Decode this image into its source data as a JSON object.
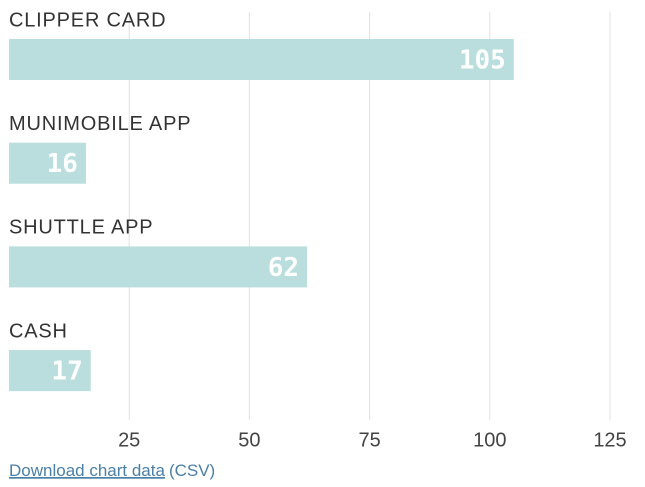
{
  "chart_data": {
    "type": "barh",
    "categories": [
      "CLIPPER CARD",
      "MUNIMOBILE APP",
      "SHUTTLE APP",
      "CASH"
    ],
    "values": [
      105,
      16,
      62,
      17
    ],
    "color": "#b9dedd",
    "xlim": [
      0,
      125
    ],
    "xticks": [
      25,
      50,
      75,
      100,
      125
    ],
    "grid": true
  },
  "footer": {
    "link": "Download chart data",
    "suffix": "(CSV)"
  }
}
